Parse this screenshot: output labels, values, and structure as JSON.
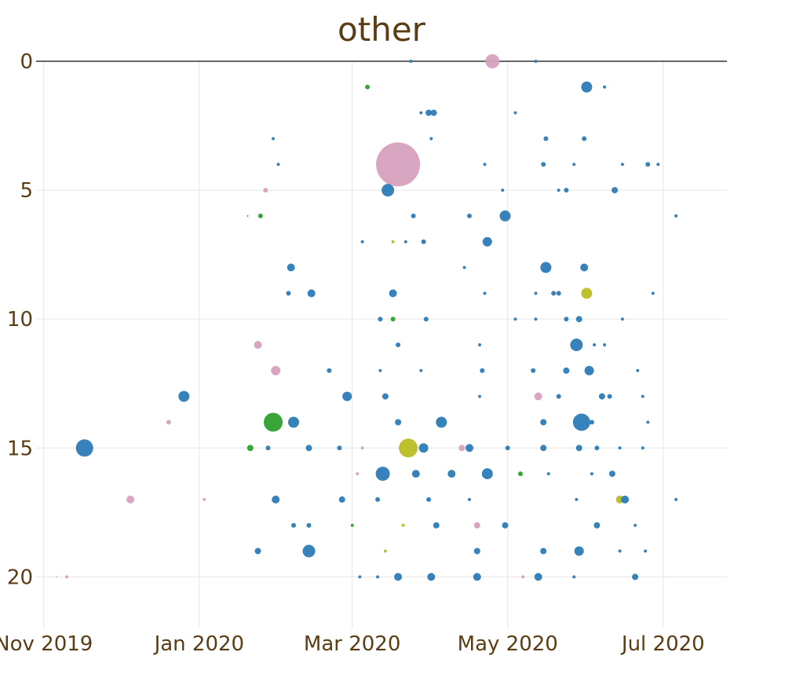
{
  "chart_data": {
    "type": "scatter",
    "title": "other",
    "xlabel": "",
    "ylabel": "",
    "x_axis": {
      "type": "date",
      "range": [
        "2019-10-29",
        "2020-07-26"
      ],
      "ticks": [
        {
          "value": "2019-11-01",
          "label": "Nov 2019"
        },
        {
          "value": "2020-01-01",
          "label": "Jan 2020"
        },
        {
          "value": "2020-03-01",
          "label": "Mar 2020"
        },
        {
          "value": "2020-05-01",
          "label": "May 2020"
        },
        {
          "value": "2020-07-01",
          "label": "Jul 2020"
        }
      ]
    },
    "y_axis": {
      "reversed": true,
      "range": [
        0,
        22
      ],
      "ticks": [
        0,
        5,
        10,
        15,
        20
      ]
    },
    "grid": true,
    "legend": "none",
    "colors": {
      "blue": "#2c7bb6",
      "pink": "#d6a1bd",
      "green": "#2ca02c",
      "olive": "#bcbd22"
    },
    "points": [
      {
        "x": "2020-04-25",
        "y": 0,
        "s": 9,
        "c": "pink"
      },
      {
        "x": "2020-03-24",
        "y": 0,
        "s": 2,
        "c": "blue"
      },
      {
        "x": "2020-05-12",
        "y": 0,
        "s": 2,
        "c": "blue"
      },
      {
        "x": "2020-03-07",
        "y": 1,
        "s": 3,
        "c": "green"
      },
      {
        "x": "2020-06-01",
        "y": 1,
        "s": 7,
        "c": "blue"
      },
      {
        "x": "2020-06-08",
        "y": 1,
        "s": 2,
        "c": "blue"
      },
      {
        "x": "2020-03-31",
        "y": 2,
        "s": 4,
        "c": "blue"
      },
      {
        "x": "2020-04-02",
        "y": 2,
        "s": 4,
        "c": "blue"
      },
      {
        "x": "2020-05-04",
        "y": 2,
        "s": 2,
        "c": "blue"
      },
      {
        "x": "2020-03-28",
        "y": 2,
        "s": 2,
        "c": "blue"
      },
      {
        "x": "2020-01-30",
        "y": 3,
        "s": 2,
        "c": "blue"
      },
      {
        "x": "2020-04-01",
        "y": 3,
        "s": 2,
        "c": "blue"
      },
      {
        "x": "2020-05-16",
        "y": 3,
        "s": 3,
        "c": "blue"
      },
      {
        "x": "2020-05-31",
        "y": 3,
        "s": 3,
        "c": "blue"
      },
      {
        "x": "2020-03-19",
        "y": 4,
        "s": 28,
        "c": "pink"
      },
      {
        "x": "2020-02-01",
        "y": 4,
        "s": 2,
        "c": "blue"
      },
      {
        "x": "2020-05-15",
        "y": 4,
        "s": 3,
        "c": "blue"
      },
      {
        "x": "2020-05-27",
        "y": 4,
        "s": 2,
        "c": "blue"
      },
      {
        "x": "2020-06-15",
        "y": 4,
        "s": 2,
        "c": "blue"
      },
      {
        "x": "2020-06-25",
        "y": 4,
        "s": 3,
        "c": "blue"
      },
      {
        "x": "2020-06-29",
        "y": 4,
        "s": 2,
        "c": "blue"
      },
      {
        "x": "2020-04-22",
        "y": 4,
        "s": 2,
        "c": "blue"
      },
      {
        "x": "2020-01-27",
        "y": 5,
        "s": 3,
        "c": "pink"
      },
      {
        "x": "2020-03-15",
        "y": 5,
        "s": 8,
        "c": "blue"
      },
      {
        "x": "2020-04-29",
        "y": 5,
        "s": 2,
        "c": "blue"
      },
      {
        "x": "2020-05-21",
        "y": 5,
        "s": 2,
        "c": "blue"
      },
      {
        "x": "2020-05-24",
        "y": 5,
        "s": 3,
        "c": "blue"
      },
      {
        "x": "2020-06-12",
        "y": 5,
        "s": 4,
        "c": "blue"
      },
      {
        "x": "2020-01-25",
        "y": 6,
        "s": 3,
        "c": "green"
      },
      {
        "x": "2020-03-25",
        "y": 6,
        "s": 3,
        "c": "blue"
      },
      {
        "x": "2020-04-16",
        "y": 6,
        "s": 3,
        "c": "blue"
      },
      {
        "x": "2020-04-30",
        "y": 6,
        "s": 7,
        "c": "blue"
      },
      {
        "x": "2020-07-06",
        "y": 6,
        "s": 2,
        "c": "blue"
      },
      {
        "x": "2020-01-20",
        "y": 6,
        "s": 1,
        "c": "blue"
      },
      {
        "x": "2020-03-17",
        "y": 7,
        "s": 2,
        "c": "olive"
      },
      {
        "x": "2020-03-05",
        "y": 7,
        "s": 2,
        "c": "blue"
      },
      {
        "x": "2020-03-22",
        "y": 7,
        "s": 2,
        "c": "blue"
      },
      {
        "x": "2020-03-29",
        "y": 7,
        "s": 3,
        "c": "blue"
      },
      {
        "x": "2020-04-23",
        "y": 7,
        "s": 6,
        "c": "blue"
      },
      {
        "x": "2020-02-06",
        "y": 8,
        "s": 5,
        "c": "blue"
      },
      {
        "x": "2020-05-16",
        "y": 8,
        "s": 7,
        "c": "blue"
      },
      {
        "x": "2020-05-31",
        "y": 8,
        "s": 5,
        "c": "blue"
      },
      {
        "x": "2020-04-14",
        "y": 8,
        "s": 2,
        "c": "blue"
      },
      {
        "x": "2020-06-01",
        "y": 9,
        "s": 7,
        "c": "olive"
      },
      {
        "x": "2020-02-05",
        "y": 9,
        "s": 3,
        "c": "blue"
      },
      {
        "x": "2020-02-14",
        "y": 9,
        "s": 5,
        "c": "blue"
      },
      {
        "x": "2020-03-17",
        "y": 9,
        "s": 5,
        "c": "blue"
      },
      {
        "x": "2020-05-19",
        "y": 9,
        "s": 3,
        "c": "blue"
      },
      {
        "x": "2020-05-21",
        "y": 9,
        "s": 3,
        "c": "blue"
      },
      {
        "x": "2020-05-12",
        "y": 9,
        "s": 2,
        "c": "blue"
      },
      {
        "x": "2020-04-22",
        "y": 9,
        "s": 2,
        "c": "blue"
      },
      {
        "x": "2020-06-27",
        "y": 9,
        "s": 2,
        "c": "blue"
      },
      {
        "x": "2020-03-17",
        "y": 10,
        "s": 3,
        "c": "green"
      },
      {
        "x": "2020-03-12",
        "y": 10,
        "s": 3,
        "c": "blue"
      },
      {
        "x": "2020-03-30",
        "y": 10,
        "s": 3,
        "c": "blue"
      },
      {
        "x": "2020-05-04",
        "y": 10,
        "s": 2,
        "c": "blue"
      },
      {
        "x": "2020-05-12",
        "y": 10,
        "s": 2,
        "c": "blue"
      },
      {
        "x": "2020-05-24",
        "y": 10,
        "s": 3,
        "c": "blue"
      },
      {
        "x": "2020-05-29",
        "y": 10,
        "s": 4,
        "c": "blue"
      },
      {
        "x": "2020-06-15",
        "y": 10,
        "s": 2,
        "c": "blue"
      },
      {
        "x": "2020-01-24",
        "y": 11,
        "s": 5,
        "c": "pink"
      },
      {
        "x": "2020-03-19",
        "y": 11,
        "s": 3,
        "c": "blue"
      },
      {
        "x": "2020-04-20",
        "y": 11,
        "s": 2,
        "c": "blue"
      },
      {
        "x": "2020-05-28",
        "y": 11,
        "s": 8,
        "c": "blue"
      },
      {
        "x": "2020-06-04",
        "y": 11,
        "s": 2,
        "c": "blue"
      },
      {
        "x": "2020-06-08",
        "y": 11,
        "s": 2,
        "c": "blue"
      },
      {
        "x": "2020-01-31",
        "y": 12,
        "s": 6,
        "c": "pink"
      },
      {
        "x": "2020-02-21",
        "y": 12,
        "s": 3,
        "c": "blue"
      },
      {
        "x": "2020-03-12",
        "y": 12,
        "s": 2,
        "c": "blue"
      },
      {
        "x": "2020-03-28",
        "y": 12,
        "s": 2,
        "c": "blue"
      },
      {
        "x": "2020-04-21",
        "y": 12,
        "s": 3,
        "c": "blue"
      },
      {
        "x": "2020-05-11",
        "y": 12,
        "s": 3,
        "c": "blue"
      },
      {
        "x": "2020-05-24",
        "y": 12,
        "s": 4,
        "c": "blue"
      },
      {
        "x": "2020-06-02",
        "y": 12,
        "s": 6,
        "c": "blue"
      },
      {
        "x": "2020-06-21",
        "y": 12,
        "s": 2,
        "c": "blue"
      },
      {
        "x": "2019-12-26",
        "y": 13,
        "s": 7,
        "c": "blue"
      },
      {
        "x": "2020-02-28",
        "y": 13,
        "s": 6,
        "c": "blue"
      },
      {
        "x": "2020-03-14",
        "y": 13,
        "s": 4,
        "c": "blue"
      },
      {
        "x": "2020-05-13",
        "y": 13,
        "s": 5,
        "c": "pink"
      },
      {
        "x": "2020-05-21",
        "y": 13,
        "s": 3,
        "c": "blue"
      },
      {
        "x": "2020-06-07",
        "y": 13,
        "s": 4,
        "c": "blue"
      },
      {
        "x": "2020-06-10",
        "y": 13,
        "s": 3,
        "c": "blue"
      },
      {
        "x": "2020-04-20",
        "y": 13,
        "s": 2,
        "c": "blue"
      },
      {
        "x": "2020-06-23",
        "y": 13,
        "s": 2,
        "c": "blue"
      },
      {
        "x": "2020-01-30",
        "y": 14,
        "s": 12,
        "c": "green"
      },
      {
        "x": "2020-02-07",
        "y": 14,
        "s": 7,
        "c": "blue"
      },
      {
        "x": "2019-12-20",
        "y": 14,
        "s": 3,
        "c": "pink"
      },
      {
        "x": "2020-03-19",
        "y": 14,
        "s": 4,
        "c": "blue"
      },
      {
        "x": "2020-04-05",
        "y": 14,
        "s": 7,
        "c": "blue"
      },
      {
        "x": "2020-05-15",
        "y": 14,
        "s": 4,
        "c": "blue"
      },
      {
        "x": "2020-05-30",
        "y": 14,
        "s": 11,
        "c": "blue"
      },
      {
        "x": "2020-06-03",
        "y": 14,
        "s": 3,
        "c": "blue"
      },
      {
        "x": "2020-06-25",
        "y": 14,
        "s": 2,
        "c": "blue"
      },
      {
        "x": "2019-11-17",
        "y": 15,
        "s": 11,
        "c": "blue"
      },
      {
        "x": "2020-01-21",
        "y": 15,
        "s": 4,
        "c": "green"
      },
      {
        "x": "2020-01-28",
        "y": 15,
        "s": 3,
        "c": "blue"
      },
      {
        "x": "2020-02-13",
        "y": 15,
        "s": 4,
        "c": "blue"
      },
      {
        "x": "2020-02-25",
        "y": 15,
        "s": 3,
        "c": "blue"
      },
      {
        "x": "2020-03-23",
        "y": 15,
        "s": 12,
        "c": "olive"
      },
      {
        "x": "2020-03-29",
        "y": 15,
        "s": 6,
        "c": "blue"
      },
      {
        "x": "2020-04-13",
        "y": 15,
        "s": 4,
        "c": "pink"
      },
      {
        "x": "2020-04-16",
        "y": 15,
        "s": 5,
        "c": "blue"
      },
      {
        "x": "2020-05-01",
        "y": 15,
        "s": 3,
        "c": "blue"
      },
      {
        "x": "2020-05-15",
        "y": 15,
        "s": 4,
        "c": "blue"
      },
      {
        "x": "2020-05-29",
        "y": 15,
        "s": 4,
        "c": "blue"
      },
      {
        "x": "2020-06-05",
        "y": 15,
        "s": 3,
        "c": "blue"
      },
      {
        "x": "2020-06-14",
        "y": 15,
        "s": 2,
        "c": "blue"
      },
      {
        "x": "2020-06-23",
        "y": 15,
        "s": 2,
        "c": "blue"
      },
      {
        "x": "2020-03-05",
        "y": 15,
        "s": 2,
        "c": "pink"
      },
      {
        "x": "2020-03-13",
        "y": 16,
        "s": 9,
        "c": "blue"
      },
      {
        "x": "2020-03-03",
        "y": 16,
        "s": 2,
        "c": "pink"
      },
      {
        "x": "2020-03-26",
        "y": 16,
        "s": 5,
        "c": "blue"
      },
      {
        "x": "2020-04-09",
        "y": 16,
        "s": 5,
        "c": "blue"
      },
      {
        "x": "2020-04-23",
        "y": 16,
        "s": 7,
        "c": "blue"
      },
      {
        "x": "2020-05-06",
        "y": 16,
        "s": 3,
        "c": "green"
      },
      {
        "x": "2020-06-11",
        "y": 16,
        "s": 4,
        "c": "blue"
      },
      {
        "x": "2020-05-17",
        "y": 16,
        "s": 2,
        "c": "blue"
      },
      {
        "x": "2020-06-03",
        "y": 16,
        "s": 2,
        "c": "blue"
      },
      {
        "x": "2019-12-05",
        "y": 17,
        "s": 5,
        "c": "pink"
      },
      {
        "x": "2020-01-31",
        "y": 17,
        "s": 5,
        "c": "blue"
      },
      {
        "x": "2020-02-26",
        "y": 17,
        "s": 4,
        "c": "blue"
      },
      {
        "x": "2020-03-11",
        "y": 17,
        "s": 3,
        "c": "blue"
      },
      {
        "x": "2020-03-31",
        "y": 17,
        "s": 3,
        "c": "blue"
      },
      {
        "x": "2020-04-16",
        "y": 17,
        "s": 2,
        "c": "blue"
      },
      {
        "x": "2020-06-14",
        "y": 17,
        "s": 5,
        "c": "olive"
      },
      {
        "x": "2020-06-16",
        "y": 17,
        "s": 5,
        "c": "blue"
      },
      {
        "x": "2020-05-28",
        "y": 17,
        "s": 2,
        "c": "blue"
      },
      {
        "x": "2020-07-06",
        "y": 17,
        "s": 2,
        "c": "blue"
      },
      {
        "x": "2020-01-03",
        "y": 17,
        "s": 2,
        "c": "pink"
      },
      {
        "x": "2020-02-07",
        "y": 18,
        "s": 3,
        "c": "blue"
      },
      {
        "x": "2020-02-13",
        "y": 18,
        "s": 3,
        "c": "blue"
      },
      {
        "x": "2020-03-21",
        "y": 18,
        "s": 2,
        "c": "olive"
      },
      {
        "x": "2020-04-03",
        "y": 18,
        "s": 4,
        "c": "blue"
      },
      {
        "x": "2020-04-19",
        "y": 18,
        "s": 4,
        "c": "pink"
      },
      {
        "x": "2020-04-30",
        "y": 18,
        "s": 4,
        "c": "blue"
      },
      {
        "x": "2020-06-05",
        "y": 18,
        "s": 4,
        "c": "blue"
      },
      {
        "x": "2020-06-20",
        "y": 18,
        "s": 2,
        "c": "blue"
      },
      {
        "x": "2020-03-01",
        "y": 18,
        "s": 2,
        "c": "green"
      },
      {
        "x": "2020-01-24",
        "y": 19,
        "s": 4,
        "c": "blue"
      },
      {
        "x": "2020-02-13",
        "y": 19,
        "s": 8,
        "c": "blue"
      },
      {
        "x": "2020-03-14",
        "y": 19,
        "s": 2,
        "c": "olive"
      },
      {
        "x": "2020-04-19",
        "y": 19,
        "s": 4,
        "c": "blue"
      },
      {
        "x": "2020-05-15",
        "y": 19,
        "s": 4,
        "c": "blue"
      },
      {
        "x": "2020-05-29",
        "y": 19,
        "s": 6,
        "c": "blue"
      },
      {
        "x": "2020-06-14",
        "y": 19,
        "s": 2,
        "c": "blue"
      },
      {
        "x": "2020-06-24",
        "y": 19,
        "s": 2,
        "c": "blue"
      },
      {
        "x": "2020-03-19",
        "y": 20,
        "s": 5,
        "c": "blue"
      },
      {
        "x": "2020-04-01",
        "y": 20,
        "s": 5,
        "c": "blue"
      },
      {
        "x": "2020-04-19",
        "y": 20,
        "s": 5,
        "c": "blue"
      },
      {
        "x": "2020-05-13",
        "y": 20,
        "s": 5,
        "c": "blue"
      },
      {
        "x": "2020-05-07",
        "y": 20,
        "s": 2,
        "c": "pink"
      },
      {
        "x": "2020-06-20",
        "y": 20,
        "s": 4,
        "c": "blue"
      },
      {
        "x": "2020-03-04",
        "y": 20,
        "s": 2,
        "c": "blue"
      },
      {
        "x": "2020-03-11",
        "y": 20,
        "s": 2,
        "c": "blue"
      },
      {
        "x": "2020-05-27",
        "y": 20,
        "s": 2,
        "c": "blue"
      },
      {
        "x": "2019-11-10",
        "y": 20,
        "s": 2,
        "c": "pink"
      },
      {
        "x": "2019-11-06",
        "y": 20,
        "s": 1,
        "c": "pink"
      }
    ]
  }
}
